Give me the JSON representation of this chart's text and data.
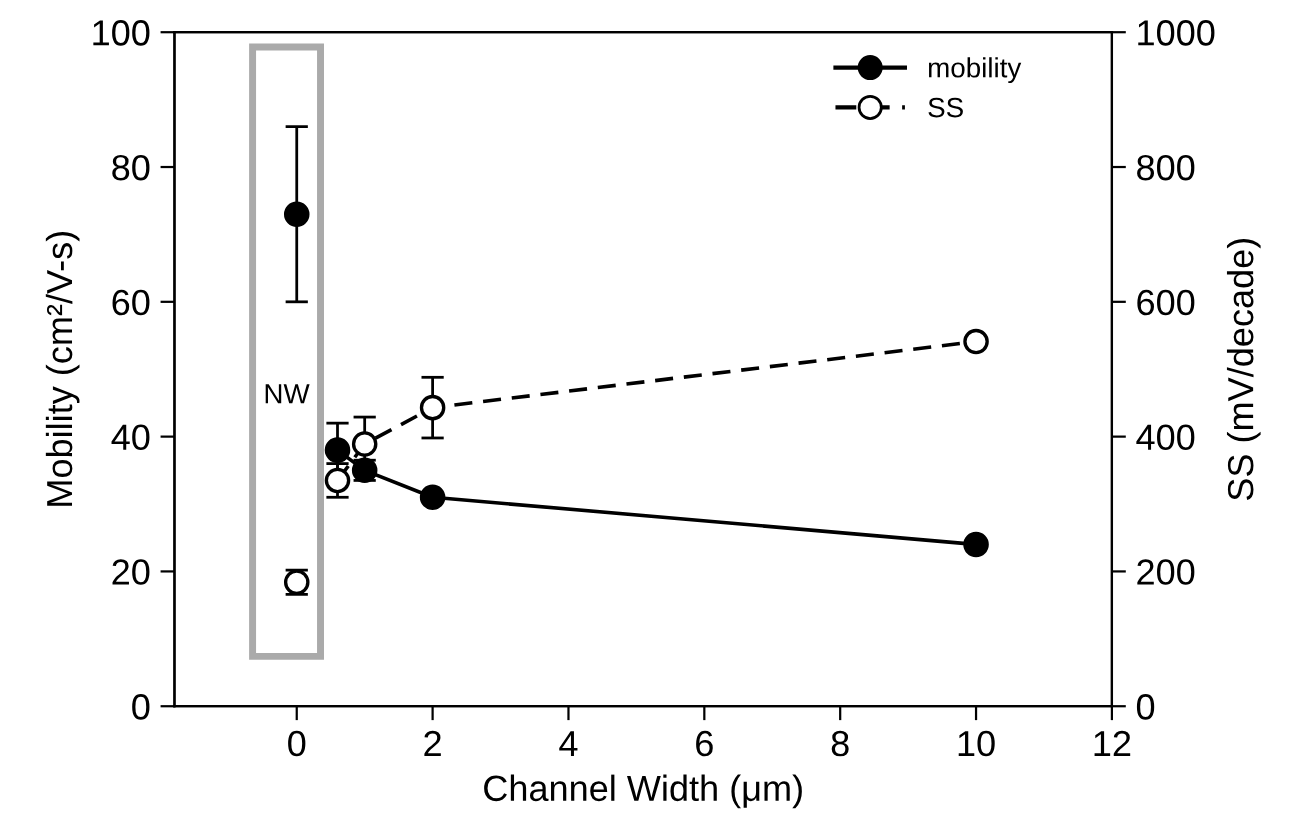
{
  "chart_data": {
    "type": "line",
    "xlabel": "Channel Width (μm)",
    "ylabel": "Mobility (cm²/V-s)",
    "y2label": "SS (mV/decade)",
    "xlim": [
      -1.8,
      12
    ],
    "xticks": [
      0,
      2,
      4,
      6,
      8,
      10,
      12
    ],
    "ylim": [
      0,
      100
    ],
    "yticks": [
      0,
      20,
      40,
      60,
      80,
      100
    ],
    "y2lim": [
      0,
      1000
    ],
    "y2ticks": [
      0,
      200,
      400,
      600,
      800,
      1000
    ],
    "series": [
      {
        "name": "mobility",
        "color": "#000000",
        "x": [
          0.6,
          1,
          2,
          10
        ],
        "values": [
          38,
          35,
          31,
          24
        ],
        "errors": [
          4,
          1.5,
          null,
          null
        ],
        "line_style": "solid"
      },
      {
        "name": "SS",
        "color": "#000000",
        "axis": "y2",
        "x": [
          0.6,
          1,
          2,
          10
        ],
        "values": [
          335,
          389,
          443,
          541
        ],
        "errors": [
          25,
          40,
          45,
          null
        ],
        "line_style": "dashed"
      },
      {
        "type": "scatter",
        "color": "#000000",
        "x": [
          0
        ],
        "values": [
          73
        ],
        "errors": [
          13
        ]
      },
      {
        "type": "scatter",
        "color": "#000000",
        "axis": "y2",
        "x": [
          0
        ],
        "values": [
          184
        ],
        "errors": [
          18
        ]
      }
    ],
    "annotations": [
      "NW"
    ],
    "marker": "circle",
    "legend": "top right",
    "grid": false
  }
}
